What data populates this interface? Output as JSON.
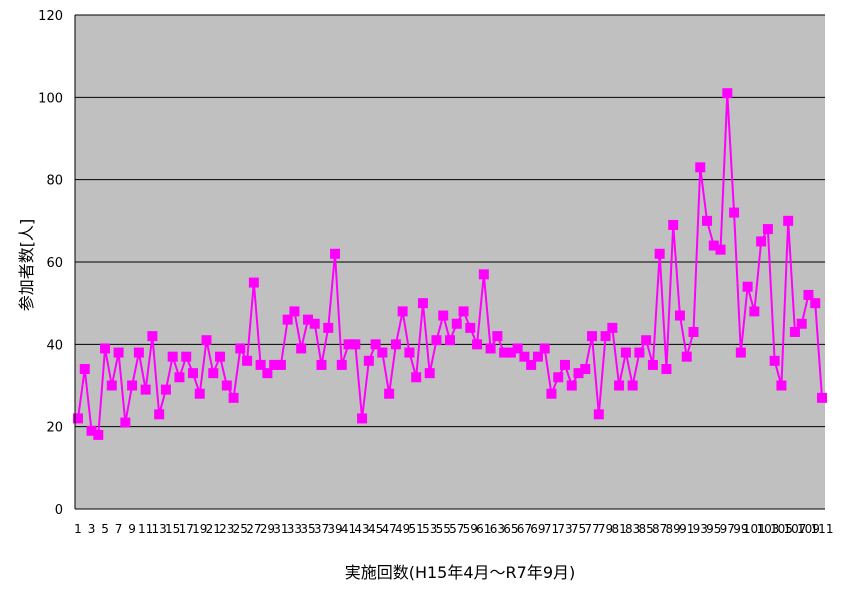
{
  "chart_data": {
    "type": "line",
    "title": "",
    "xlabel": "実施回数(H15年4月～R7年9月)",
    "ylabel": "参加者数[人]",
    "ylim": [
      0,
      120
    ],
    "yticks": [
      "0",
      "20",
      "40",
      "60",
      "80",
      "100",
      "120"
    ],
    "grid": true,
    "legend": "none",
    "colors": {
      "series": "#ff00ff",
      "plot_background": "#c0c0c0",
      "gridline": "#000000"
    },
    "x": [
      1,
      2,
      3,
      4,
      5,
      6,
      7,
      8,
      9,
      10,
      11,
      12,
      13,
      14,
      15,
      16,
      17,
      18,
      19,
      20,
      21,
      22,
      23,
      24,
      25,
      26,
      27,
      28,
      29,
      30,
      31,
      32,
      33,
      34,
      35,
      36,
      37,
      38,
      39,
      40,
      41,
      42,
      43,
      44,
      45,
      46,
      47,
      48,
      49,
      50,
      51,
      52,
      53,
      54,
      55,
      56,
      57,
      58,
      59,
      60,
      61,
      62,
      63,
      64,
      65,
      66,
      67,
      68,
      69,
      70,
      71,
      72,
      73,
      74,
      75,
      76,
      77,
      78,
      79,
      80,
      81,
      82,
      83,
      84,
      85,
      86,
      87,
      88,
      89,
      90,
      91,
      92,
      93,
      94,
      95,
      96,
      97,
      98,
      99,
      100,
      101,
      102,
      103,
      104,
      105,
      106,
      107,
      108,
      109,
      110,
      111
    ],
    "xtick_labels": [
      "1",
      "3",
      "5",
      "7",
      "9",
      "11",
      "13",
      "15",
      "17",
      "19",
      "21",
      "23",
      "25",
      "27",
      "29",
      "31",
      "33",
      "35",
      "37",
      "39",
      "41",
      "43",
      "45",
      "47",
      "49",
      "51",
      "53",
      "55",
      "57",
      "59",
      "61",
      "63",
      "65",
      "67",
      "69",
      "71",
      "73",
      "75",
      "77",
      "79",
      "81",
      "83",
      "85",
      "87",
      "89",
      "91",
      "93",
      "95",
      "97",
      "99",
      "101",
      "103",
      "105",
      "107",
      "109",
      "111"
    ],
    "series": [
      {
        "values": [
          22,
          34,
          19,
          18,
          39,
          30,
          38,
          21,
          30,
          38,
          29,
          42,
          23,
          29,
          37,
          32,
          37,
          33,
          28,
          41,
          33,
          37,
          30,
          27,
          39,
          36,
          55,
          35,
          33,
          35,
          35,
          46,
          48,
          39,
          46,
          45,
          35,
          44,
          62,
          35,
          40,
          40,
          22,
          36,
          40,
          38,
          28,
          40,
          48,
          38,
          32,
          50,
          33,
          41,
          47,
          41,
          45,
          48,
          44,
          40,
          57,
          39,
          42,
          38,
          38,
          39,
          37,
          35,
          37,
          39,
          28,
          32,
          35,
          30,
          33,
          34,
          42,
          23,
          42,
          44,
          30,
          38,
          30,
          38,
          41,
          35,
          62,
          34,
          69,
          47,
          37,
          43,
          83,
          70,
          64,
          63,
          101,
          72,
          38,
          54,
          48,
          65,
          68,
          36,
          30,
          70,
          43,
          45,
          52,
          50,
          27
        ]
      }
    ]
  }
}
